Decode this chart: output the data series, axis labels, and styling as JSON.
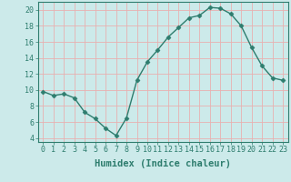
{
  "x": [
    0,
    1,
    2,
    3,
    4,
    5,
    6,
    7,
    8,
    9,
    10,
    11,
    12,
    13,
    14,
    15,
    16,
    17,
    18,
    19,
    20,
    21,
    22,
    23
  ],
  "y": [
    9.8,
    9.3,
    9.5,
    9.0,
    7.2,
    6.4,
    5.2,
    4.3,
    6.5,
    11.2,
    13.5,
    15.0,
    16.6,
    17.8,
    19.0,
    19.3,
    20.3,
    20.2,
    19.5,
    18.0,
    15.3,
    13.0,
    11.5,
    11.2
  ],
  "xlim": [
    -0.5,
    23.5
  ],
  "ylim": [
    3.5,
    21.0
  ],
  "yticks": [
    4,
    6,
    8,
    10,
    12,
    14,
    16,
    18,
    20
  ],
  "xticks": [
    0,
    1,
    2,
    3,
    4,
    5,
    6,
    7,
    8,
    9,
    10,
    11,
    12,
    13,
    14,
    15,
    16,
    17,
    18,
    19,
    20,
    21,
    22,
    23
  ],
  "xlabel": "Humidex (Indice chaleur)",
  "line_color": "#2e7d6e",
  "bg_color": "#cceaea",
  "grid_color": "#e8f8f8",
  "marker": "D",
  "marker_size": 2.5,
  "linewidth": 1.0,
  "xlabel_fontsize": 7.5,
  "tick_fontsize": 6.0
}
